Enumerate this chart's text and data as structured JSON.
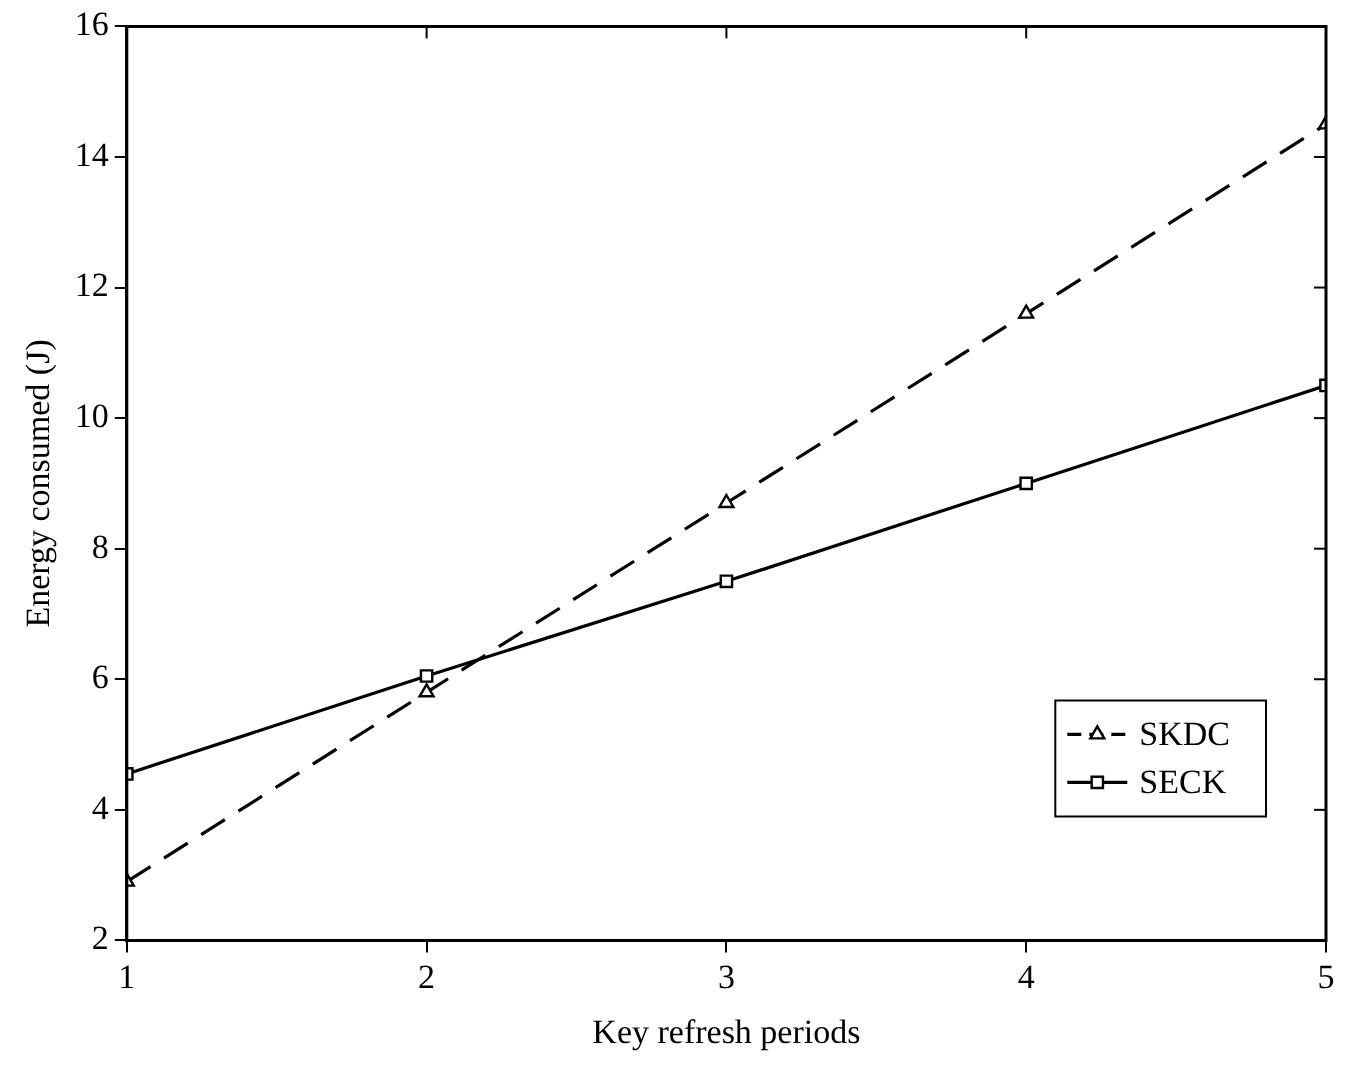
{
  "chart_data": {
    "type": "line",
    "xlabel": "Key refresh periods",
    "ylabel": "Energy consumed (J)",
    "x": [
      1,
      2,
      3,
      4,
      5
    ],
    "series": [
      {
        "name": "SKDC",
        "color": "#000000",
        "marker": "triangle",
        "line_style": "dashed",
        "values": [
          2.9,
          5.8,
          8.7,
          11.6,
          14.5
        ]
      },
      {
        "name": "SECK",
        "color": "#000000",
        "marker": "square",
        "line_style": "solid",
        "values": [
          4.55,
          6.05,
          7.5,
          9.0,
          10.5
        ]
      }
    ],
    "xlim": [
      1,
      5
    ],
    "xticks": [
      1,
      2,
      3,
      4,
      5
    ],
    "ylim": [
      2,
      16
    ],
    "yticks": [
      2,
      4,
      6,
      8,
      10,
      12,
      14,
      16
    ],
    "grid": false,
    "legend": "bottom right"
  }
}
